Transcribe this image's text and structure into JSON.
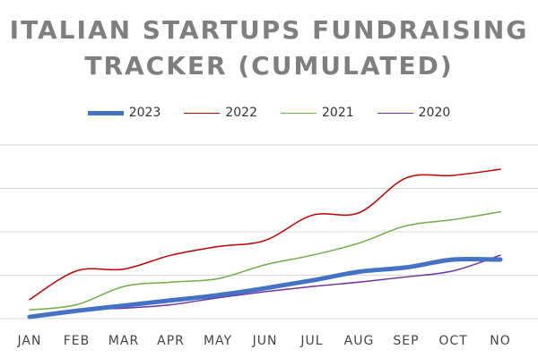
{
  "title_lines": [
    "ITALIAN STARTUPS FUNDRAISING",
    "TRACKER (CUMULATED)"
  ],
  "chart_data": {
    "type": "line",
    "title": "ITALIAN STARTUPS FUNDRAISING TRACKER (CUMULATED)",
    "xlabel": "",
    "ylabel": "",
    "categories": [
      "JAN",
      "FEB",
      "MAR",
      "APR",
      "MAY",
      "JUN",
      "JUL",
      "AUG",
      "SEP",
      "OCT",
      "NO"
    ],
    "ylim": [
      0,
      200
    ],
    "grid": true,
    "legend": "top-center",
    "series": [
      {
        "name": "2023",
        "color": "#4472c4",
        "values": [
          2,
          9,
          15,
          21,
          27,
          35,
          44,
          54,
          59,
          68,
          68
        ]
      },
      {
        "name": "2022",
        "color": "#c00000",
        "values": [
          22,
          55,
          57,
          73,
          83,
          90,
          119,
          122,
          162,
          165,
          172
        ]
      },
      {
        "name": "2021",
        "color": "#70ad47",
        "values": [
          10,
          16,
          37,
          42,
          46,
          62,
          73,
          87,
          107,
          114,
          123
        ]
      },
      {
        "name": "2020",
        "color": "#7030a0",
        "values": [
          1,
          10,
          12,
          16,
          24,
          31,
          37,
          42,
          48,
          55,
          73
        ]
      }
    ]
  }
}
